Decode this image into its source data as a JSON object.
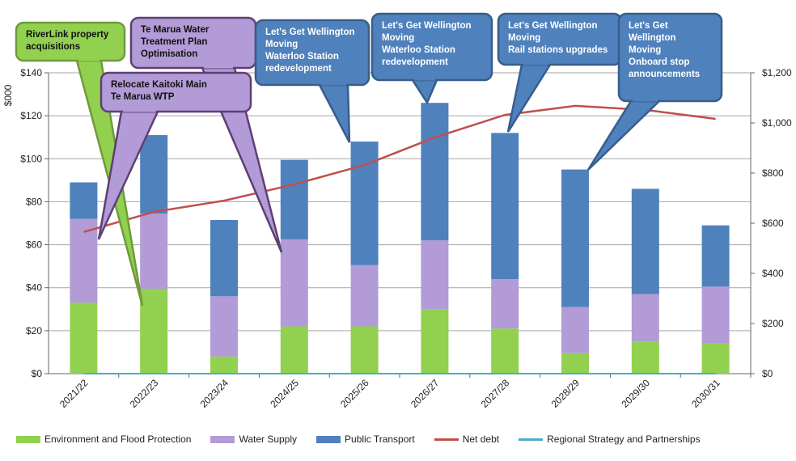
{
  "chart_data": {
    "type": "bar",
    "stacked": true,
    "ylabel": "$000",
    "ylim": [
      0,
      140
    ],
    "yticks": [
      "$0",
      "$20",
      "$40",
      "$60",
      "$80",
      "$100",
      "$120",
      "$140"
    ],
    "y2lim": [
      0,
      1200
    ],
    "y2ticks": [
      "$0",
      "$200",
      "$400",
      "$600",
      "$800",
      "$1,000",
      "$1,200"
    ],
    "categories": [
      "2021/22",
      "2022/23",
      "2023/24",
      "2024/25",
      "2025/26",
      "2026/27",
      "2027/28",
      "2028/29",
      "2029/30",
      "2030/31"
    ],
    "series": [
      {
        "name": "Environment and Flood Protection",
        "type": "bar",
        "color": "#92d050",
        "values": [
          33,
          39.5,
          8,
          22,
          22,
          30,
          21,
          9.5,
          15,
          14
        ]
      },
      {
        "name": "Water Supply",
        "type": "bar",
        "color": "#b29bd6",
        "values": [
          39,
          35,
          28,
          40.5,
          28.5,
          32,
          23,
          21.5,
          22,
          26.5
        ]
      },
      {
        "name": "Public Transport",
        "type": "bar",
        "color": "#4f81bd",
        "values": [
          17,
          36.5,
          35.5,
          37,
          57.5,
          64,
          68,
          64,
          49,
          28.5
        ]
      },
      {
        "name": "Net debt",
        "type": "line",
        "axis": "right",
        "color": "#c0504d",
        "values": [
          565,
          645,
          690,
          755,
          832,
          942,
          1032,
          1068,
          1052,
          1016
        ]
      },
      {
        "name": "Regional Strategy and Partnerships",
        "type": "line",
        "axis": "left",
        "color": "#4bacc6",
        "values": [
          0,
          0,
          0,
          0,
          0,
          0,
          0,
          0,
          0,
          0
        ]
      }
    ],
    "grid": true,
    "legend": "bottom",
    "annotations": [
      {
        "lines": [
          "RiverLink  property",
          "acquisitions"
        ],
        "category": "2022/23",
        "color": "#92d050"
      },
      {
        "lines": [
          "Te Marua Water",
          "Treatment Plan",
          "Optimisation"
        ],
        "category": "2024/25",
        "color": "#b29bd6"
      },
      {
        "lines": [
          "Relocate Kaitoki Main",
          "Te Marua WTP"
        ],
        "category": "2021/22",
        "color": "#b29bd6"
      },
      {
        "lines": [
          "Let's Get Wellington",
          "Moving",
          "Waterloo Station",
          "redevelopment"
        ],
        "category": "2025/26",
        "color": "#4f81bd"
      },
      {
        "lines": [
          "Let's Get Wellington",
          "Moving",
          "Waterloo Station",
          "redevelopment"
        ],
        "category": "2026/27",
        "color": "#4f81bd"
      },
      {
        "lines": [
          "Let's Get Wellington",
          "Moving",
          "Rail stations  upgrades"
        ],
        "category": "2027/28",
        "color": "#4f81bd"
      },
      {
        "lines": [
          "Let's Get",
          "Wellington",
          "Moving",
          "Onboard  stop",
          "announcements"
        ],
        "category": "2028/29",
        "color": "#4f81bd"
      }
    ]
  }
}
